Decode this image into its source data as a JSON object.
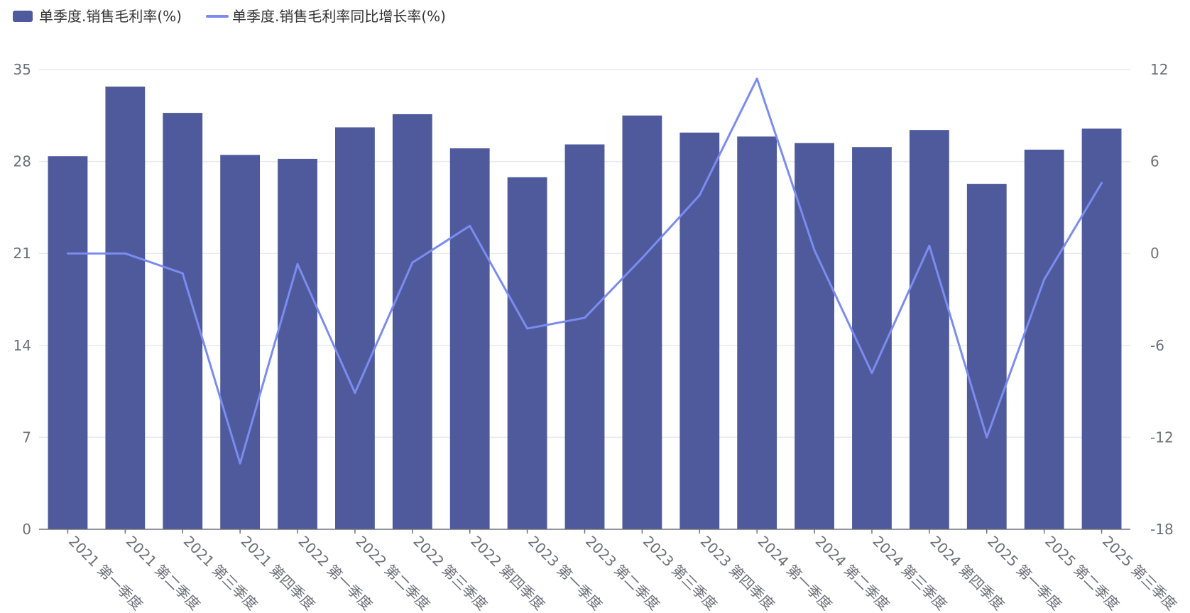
{
  "chart_data": {
    "type": "bar",
    "categories": [
      "2021 第一季度",
      "2021 第二季度",
      "2021 第三季度",
      "2021 第四季度",
      "2022 第一季度",
      "2022 第二季度",
      "2022 第三季度",
      "2022 第四季度",
      "2023 第一季度",
      "2023 第二季度",
      "2023 第三季度",
      "2023 第四季度",
      "2024 第一季度",
      "2024 第二季度",
      "2024 第三季度",
      "2024 第四季度",
      "2025 第一季度",
      "2025 第二季度",
      "2025 第三季度"
    ],
    "series": [
      {
        "name": "单季度.销售毛利率(%)",
        "type": "bar",
        "axis": "left",
        "color": "#4e5a9b",
        "values": [
          28.4,
          33.7,
          31.7,
          28.5,
          28.2,
          30.6,
          31.6,
          29.0,
          26.8,
          29.3,
          31.5,
          30.2,
          29.9,
          29.4,
          29.1,
          30.4,
          26.3,
          28.9,
          30.5
        ]
      },
      {
        "name": "单季度.销售毛利率同比增长率(%)",
        "type": "line",
        "axis": "right",
        "color": "#7b8cf0",
        "values": [
          0,
          0,
          -1.3,
          -13.7,
          -0.7,
          -9.1,
          -0.6,
          1.8,
          -4.9,
          -4.2,
          -0.3,
          3.8,
          11.4,
          0.2,
          -7.8,
          0.5,
          -12.0,
          -1.7,
          4.6
        ]
      }
    ],
    "y_left": {
      "ylim": [
        0,
        35
      ],
      "ticks": [
        0,
        7,
        14,
        21,
        28,
        35
      ]
    },
    "y_right": {
      "ylim": [
        -18,
        12
      ],
      "ticks": [
        -18,
        -12,
        -6,
        0,
        6,
        12
      ]
    },
    "grid": true,
    "legend_position": "top-left"
  }
}
